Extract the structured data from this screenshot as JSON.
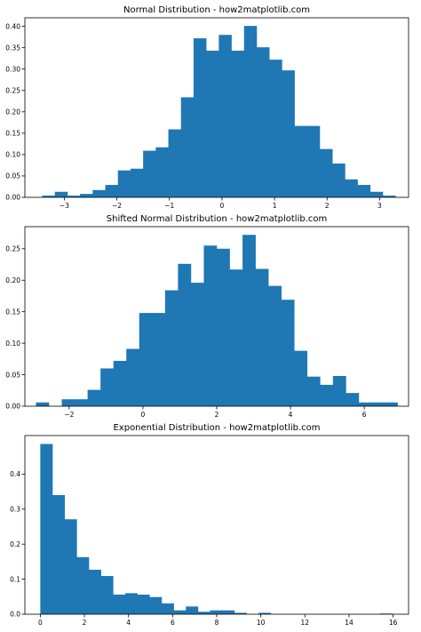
{
  "colors": {
    "bar": "#1f77b4",
    "background": "#ffffff",
    "axis": "#000000"
  },
  "chart_data": [
    {
      "type": "bar",
      "subtype": "histogram",
      "title": "Normal Distribution - how2matplotlib.com",
      "xlabel": "",
      "ylabel": "",
      "xlim": [
        -3.75,
        3.55
      ],
      "ylim": [
        0,
        0.42
      ],
      "xticks": [
        -3,
        -2,
        -1,
        0,
        1,
        2,
        3
      ],
      "yticks": [
        0.0,
        0.05,
        0.1,
        0.15,
        0.2,
        0.25,
        0.3,
        0.35,
        0.4
      ],
      "ytick_decimals": 2,
      "grid": false,
      "bin_edges": [
        -3.42,
        -3.18,
        -2.94,
        -2.7,
        -2.46,
        -2.22,
        -1.98,
        -1.74,
        -1.5,
        -1.26,
        -1.02,
        -0.78,
        -0.54,
        -0.3,
        -0.06,
        0.18,
        0.42,
        0.66,
        0.9,
        1.14,
        1.38,
        1.62,
        1.86,
        2.1,
        2.34,
        2.58,
        2.82,
        3.06,
        3.3
      ],
      "values": [
        0.004,
        0.013,
        0.004,
        0.008,
        0.017,
        0.029,
        0.063,
        0.067,
        0.109,
        0.117,
        0.159,
        0.234,
        0.372,
        0.343,
        0.38,
        0.343,
        0.401,
        0.351,
        0.322,
        0.297,
        0.167,
        0.167,
        0.113,
        0.079,
        0.042,
        0.029,
        0.013,
        0.004
      ]
    },
    {
      "type": "bar",
      "subtype": "histogram",
      "title": "Shifted Normal Distribution - how2matplotlib.com",
      "xlabel": "",
      "ylabel": "",
      "xlim": [
        -3.2,
        7.2
      ],
      "ylim": [
        0,
        0.285
      ],
      "xticks": [
        -2,
        0,
        2,
        4,
        6
      ],
      "yticks": [
        0.0,
        0.05,
        0.1,
        0.15,
        0.2,
        0.25
      ],
      "ytick_decimals": 2,
      "grid": false,
      "bin_edges": [
        -2.9,
        -2.55,
        -2.2,
        -1.85,
        -1.5,
        -1.15,
        -0.8,
        -0.45,
        -0.1,
        0.25,
        0.6,
        0.95,
        1.3,
        1.65,
        2.0,
        2.35,
        2.7,
        3.05,
        3.4,
        3.75,
        4.1,
        4.45,
        4.8,
        5.15,
        5.5,
        5.85,
        6.2,
        6.55,
        6.9
      ],
      "values": [
        0.006,
        0.0,
        0.011,
        0.011,
        0.026,
        0.06,
        0.072,
        0.091,
        0.148,
        0.148,
        0.184,
        0.226,
        0.196,
        0.255,
        0.25,
        0.217,
        0.272,
        0.218,
        0.191,
        0.169,
        0.088,
        0.047,
        0.034,
        0.048,
        0.021,
        0.006,
        0.006,
        0.006
      ]
    },
    {
      "type": "bar",
      "subtype": "histogram",
      "title": "Exponential Distribution - how2matplotlib.com",
      "xlabel": "",
      "ylabel": "",
      "xlim": [
        -0.7,
        16.7
      ],
      "ylim": [
        0,
        0.51
      ],
      "xticks": [
        0,
        2,
        4,
        6,
        8,
        10,
        12,
        14,
        16
      ],
      "yticks": [
        0.0,
        0.1,
        0.2,
        0.3,
        0.4
      ],
      "ytick_decimals": 1,
      "grid": false,
      "bin_edges": [
        0.0,
        0.55,
        1.1,
        1.65,
        2.2,
        2.75,
        3.3,
        3.85,
        4.4,
        4.95,
        5.5,
        6.05,
        6.6,
        7.15,
        7.7,
        8.25,
        8.8,
        9.35,
        9.9,
        10.45,
        11.0,
        11.55,
        12.1,
        12.65,
        13.2,
        13.75,
        14.3,
        14.85,
        15.4,
        15.95,
        16.5
      ],
      "values": [
        0.486,
        0.34,
        0.271,
        0.163,
        0.127,
        0.109,
        0.056,
        0.06,
        0.056,
        0.049,
        0.031,
        0.011,
        0.022,
        0.007,
        0.011,
        0.011,
        0.004,
        0.0,
        0.004,
        0.0,
        0.0,
        0.0,
        0.0,
        0.0,
        0.0,
        0.0,
        0.0,
        0.0,
        0.002,
        0.0
      ]
    }
  ]
}
